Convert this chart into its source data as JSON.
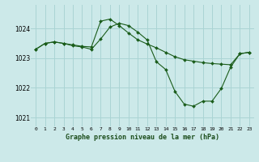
{
  "title": "Graphe pression niveau de la mer (hPa)",
  "bg_color": "#cce9e9",
  "grid_color": "#aad4d4",
  "line_color": "#1a5c1a",
  "marker_color": "#1a5c1a",
  "xlim": [
    -0.5,
    23.5
  ],
  "ylim": [
    1020.7,
    1024.8
  ],
  "yticks": [
    1021,
    1022,
    1023,
    1024
  ],
  "xticks": [
    0,
    1,
    2,
    3,
    4,
    5,
    6,
    7,
    8,
    9,
    10,
    11,
    12,
    13,
    14,
    15,
    16,
    17,
    18,
    19,
    20,
    21,
    22,
    23
  ],
  "series": [
    {
      "x": [
        0,
        1,
        2,
        3,
        4,
        5,
        6,
        7,
        8,
        9,
        10,
        11,
        12,
        13,
        14,
        15,
        16,
        17,
        18,
        19,
        20,
        21,
        22,
        23
      ],
      "y": [
        1023.3,
        1023.5,
        1023.55,
        1023.5,
        1023.45,
        1023.4,
        1023.38,
        1024.25,
        1024.32,
        1024.1,
        1023.85,
        1023.62,
        1023.48,
        1023.35,
        1023.2,
        1023.05,
        1022.95,
        1022.9,
        1022.85,
        1022.82,
        1022.8,
        1022.78,
        1023.15,
        1023.2
      ]
    },
    {
      "x": [
        0,
        1,
        2,
        3,
        4,
        5,
        6,
        7,
        8,
        9,
        10,
        11,
        12,
        13,
        14,
        15,
        16,
        17,
        18,
        19,
        20,
        21,
        22,
        23
      ],
      "y": [
        1023.3,
        1023.5,
        1023.55,
        1023.5,
        1023.42,
        1023.38,
        1023.3,
        1023.65,
        1024.05,
        1024.18,
        1024.1,
        1023.88,
        1023.62,
        1022.88,
        1022.62,
        1021.88,
        1021.45,
        1021.38,
        1021.55,
        1021.55,
        1021.98,
        1022.7,
        1023.15,
        1023.2
      ]
    }
  ]
}
